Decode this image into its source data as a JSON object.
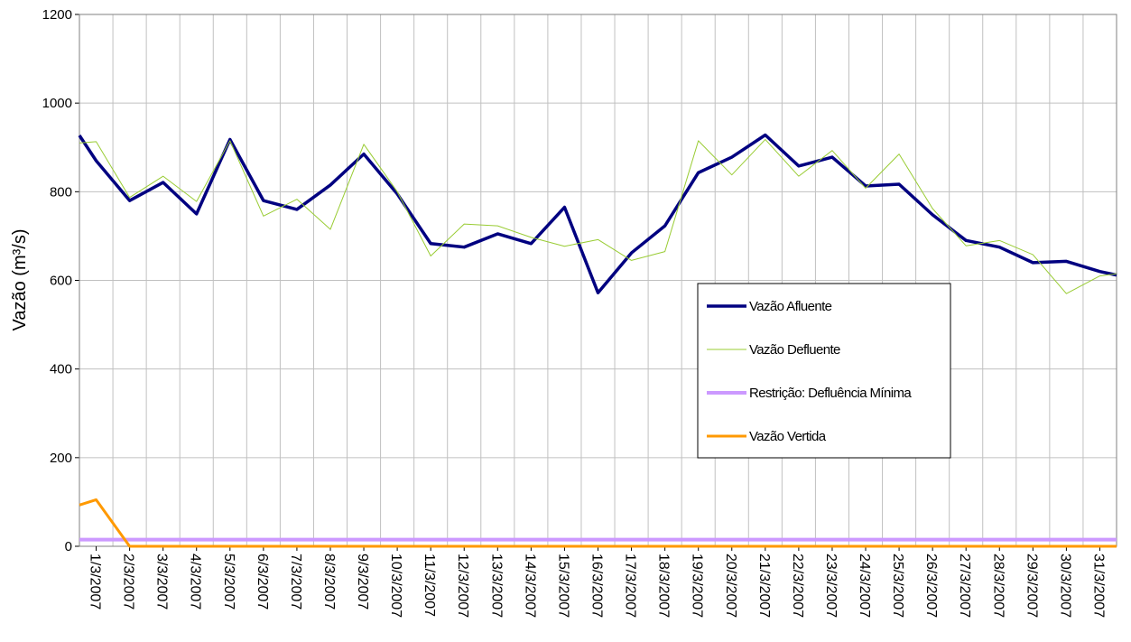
{
  "chart_data": {
    "type": "line",
    "y_label": "Vazão (m³/s)",
    "categories": [
      null,
      "1/3/2007",
      "2/3/2007",
      "3/3/2007",
      "4/3/2007",
      "5/3/2007",
      "6/3/2007",
      "7/3/2007",
      "8/3/2007",
      "9/3/2007",
      "10/3/2007",
      "11/3/2007",
      "12/3/2007",
      "13/3/2007",
      "14/3/2007",
      "15/3/2007",
      "16/3/2007",
      "17/3/2007",
      "18/3/2007",
      "19/3/2007",
      "20/3/2007",
      "21/3/2007",
      "22/3/2007",
      "23/3/2007",
      "24/3/2007",
      "25/3/2007",
      "26/3/2007",
      "27/3/2007",
      "28/3/2007",
      "29/3/2007",
      "30/3/2007",
      "31/3/2007",
      null
    ],
    "series": [
      {
        "name": "Vazão Afluente",
        "color": "#000080",
        "values": [
          927,
          870,
          780,
          821,
          750,
          918,
          780,
          760,
          815,
          885,
          795,
          683,
          675,
          705,
          683,
          765,
          572,
          662,
          723,
          843,
          878,
          928,
          858,
          878,
          813,
          817,
          748,
          690,
          675,
          640,
          643,
          620,
          612
        ]
      },
      {
        "name": "Vazão Defluente",
        "color": "#99cc33",
        "values": [
          910,
          913,
          787,
          835,
          778,
          915,
          745,
          783,
          715,
          907,
          800,
          655,
          727,
          723,
          697,
          677,
          692,
          645,
          665,
          915,
          838,
          918,
          835,
          893,
          808,
          885,
          762,
          678,
          690,
          658,
          570,
          610,
          615
        ]
      },
      {
        "name": "Restrição: Defluência Mínima",
        "color": "#cc99ff",
        "values": [
          15,
          15,
          15,
          15,
          15,
          15,
          15,
          15,
          15,
          15,
          15,
          15,
          15,
          15,
          15,
          15,
          15,
          15,
          15,
          15,
          15,
          15,
          15,
          15,
          15,
          15,
          15,
          15,
          15,
          15,
          15,
          15,
          15
        ]
      },
      {
        "name": "Vazão Vertida",
        "color": "#ff9900",
        "values": [
          93,
          105,
          0,
          0,
          0,
          0,
          0,
          0,
          0,
          0,
          0,
          0,
          0,
          0,
          0,
          0,
          0,
          0,
          0,
          0,
          0,
          0,
          0,
          0,
          0,
          0,
          0,
          0,
          0,
          0,
          0,
          0,
          0
        ]
      }
    ],
    "ylim": [
      0,
      1200
    ],
    "yticks": [
      0,
      200,
      400,
      600,
      800,
      1000,
      1200
    ],
    "grid": true
  }
}
